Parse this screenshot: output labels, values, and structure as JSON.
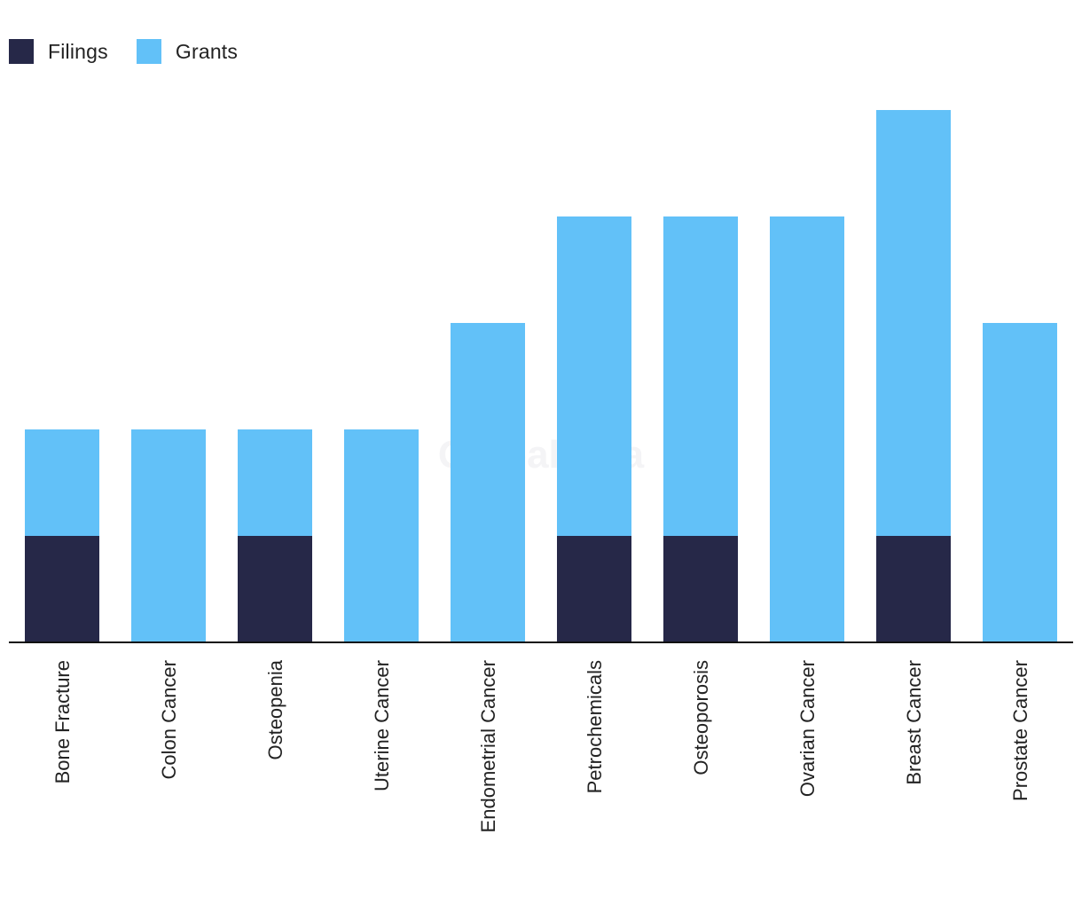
{
  "colors": {
    "filings": "#262848",
    "grants": "#62c1f8",
    "axis": "#111111"
  },
  "watermark": "GlobalData",
  "chart_data": {
    "type": "bar",
    "stacked": true,
    "categories": [
      "Bone Fracture",
      "Colon Cancer",
      "Osteopenia",
      "Uterine Cancer",
      "Endometrial Cancer",
      "Petrochemicals",
      "Osteoporosis",
      "Ovarian Cancer",
      "Breast Cancer",
      "Prostate Cancer"
    ],
    "series": [
      {
        "name": "Filings",
        "color": "#262848",
        "values": [
          1,
          0,
          1,
          0,
          0,
          1,
          1,
          0,
          1,
          0
        ]
      },
      {
        "name": "Grants",
        "color": "#62c1f8",
        "values": [
          1,
          2,
          1,
          2,
          3,
          3,
          3,
          4,
          4,
          3
        ]
      }
    ],
    "ylim": [
      0,
      5
    ],
    "grid": false,
    "legend_position": "top-left",
    "title": "",
    "xlabel": "",
    "ylabel": ""
  }
}
